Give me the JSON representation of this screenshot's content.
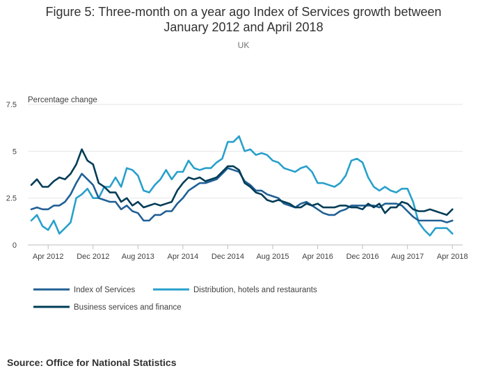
{
  "title_lines": [
    "Figure 5: Three-month on a year ago Index of Services growth between",
    "January 2012 and April 2018"
  ],
  "subtitle": "UK",
  "source": "Source: Office for National Statistics",
  "colors": {
    "Index of Services": "#206095",
    "Distribution, hotels and restaurants": "#27a0cc",
    "Business services and finance": "#003c57"
  },
  "chart_data": {
    "type": "line",
    "title": "Figure 5: Three-month on a year ago Index of Services growth between January 2012 and April 2018",
    "subtitle": "UK",
    "ylabel": "Percentage change",
    "xlabel": "",
    "ylim": [
      0,
      7.5
    ],
    "yticks": [
      "0",
      "2.5",
      "5",
      "7.5"
    ],
    "xticks": [
      "Apr 2012",
      "Dec 2012",
      "Aug 2013",
      "Apr 2014",
      "Dec 2014",
      "Aug 2015",
      "Apr 2016",
      "Dec 2016",
      "Aug 2017",
      "Apr 2018"
    ],
    "grid": true,
    "legend_position": "bottom",
    "x": [
      "Jan 2012",
      "Feb 2012",
      "Mar 2012",
      "Apr 2012",
      "May 2012",
      "Jun 2012",
      "Jul 2012",
      "Aug 2012",
      "Sep 2012",
      "Oct 2012",
      "Nov 2012",
      "Dec 2012",
      "Jan 2013",
      "Feb 2013",
      "Mar 2013",
      "Apr 2013",
      "May 2013",
      "Jun 2013",
      "Jul 2013",
      "Aug 2013",
      "Sep 2013",
      "Oct 2013",
      "Nov 2013",
      "Dec 2013",
      "Jan 2014",
      "Feb 2014",
      "Mar 2014",
      "Apr 2014",
      "May 2014",
      "Jun 2014",
      "Jul 2014",
      "Aug 2014",
      "Sep 2014",
      "Oct 2014",
      "Nov 2014",
      "Dec 2014",
      "Jan 2015",
      "Feb 2015",
      "Mar 2015",
      "Apr 2015",
      "May 2015",
      "Jun 2015",
      "Jul 2015",
      "Aug 2015",
      "Sep 2015",
      "Oct 2015",
      "Nov 2015",
      "Dec 2015",
      "Jan 2016",
      "Feb 2016",
      "Mar 2016",
      "Apr 2016",
      "May 2016",
      "Jun 2016",
      "Jul 2016",
      "Aug 2016",
      "Sep 2016",
      "Oct 2016",
      "Nov 2016",
      "Dec 2016",
      "Jan 2017",
      "Feb 2017",
      "Mar 2017",
      "Apr 2017",
      "May 2017",
      "Jun 2017",
      "Jul 2017",
      "Aug 2017",
      "Sep 2017",
      "Oct 2017",
      "Nov 2017",
      "Dec 2017",
      "Jan 2018",
      "Feb 2018",
      "Mar 2018",
      "Apr 2018"
    ],
    "series": [
      {
        "name": "Index of Services",
        "values": [
          1.9,
          2.0,
          1.9,
          1.9,
          2.1,
          2.1,
          2.3,
          2.7,
          3.3,
          3.8,
          3.5,
          3.2,
          2.5,
          2.4,
          2.3,
          2.3,
          1.9,
          2.1,
          1.8,
          1.7,
          1.3,
          1.3,
          1.6,
          1.6,
          1.8,
          1.8,
          2.2,
          2.5,
          2.9,
          3.1,
          3.3,
          3.3,
          3.4,
          3.5,
          3.8,
          4.1,
          4.0,
          3.9,
          3.4,
          3.2,
          2.9,
          2.9,
          2.7,
          2.6,
          2.5,
          2.2,
          2.1,
          2.0,
          2.2,
          2.3,
          2.1,
          1.9,
          1.7,
          1.6,
          1.6,
          1.8,
          1.9,
          2.1,
          2.1,
          2.1,
          2.1,
          2.1,
          2.0,
          2.2,
          2.2,
          2.2,
          2.1,
          1.8,
          1.5,
          1.3,
          1.3,
          1.3,
          1.3,
          1.3,
          1.2,
          1.3
        ]
      },
      {
        "name": "Distribution, hotels and restaurants",
        "values": [
          1.3,
          1.6,
          1.0,
          0.8,
          1.3,
          0.6,
          0.9,
          1.2,
          2.5,
          2.7,
          3.0,
          2.5,
          2.5,
          3.1,
          3.1,
          3.6,
          3.1,
          4.1,
          4.0,
          3.7,
          2.9,
          2.8,
          3.2,
          3.5,
          4.0,
          3.5,
          3.9,
          3.9,
          4.5,
          4.1,
          4.0,
          4.1,
          4.1,
          4.4,
          4.6,
          5.5,
          5.5,
          5.8,
          5.0,
          5.1,
          4.8,
          4.9,
          4.8,
          4.5,
          4.4,
          4.1,
          4.0,
          3.9,
          4.1,
          4.2,
          3.9,
          3.3,
          3.3,
          3.2,
          3.1,
          3.3,
          3.7,
          4.5,
          4.6,
          4.4,
          3.6,
          3.1,
          2.9,
          3.1,
          2.9,
          2.8,
          3.0,
          3.0,
          2.3,
          1.2,
          0.8,
          0.5,
          0.9,
          0.9,
          0.9,
          0.6
        ]
      },
      {
        "name": "Business services and finance",
        "values": [
          3.2,
          3.5,
          3.1,
          3.1,
          3.4,
          3.6,
          3.5,
          3.8,
          4.3,
          5.1,
          4.5,
          4.3,
          3.3,
          3.1,
          2.8,
          2.8,
          2.3,
          2.5,
          2.1,
          2.3,
          2.0,
          2.1,
          2.2,
          2.1,
          2.2,
          2.3,
          2.9,
          3.3,
          3.6,
          3.5,
          3.6,
          3.4,
          3.5,
          3.6,
          3.9,
          4.2,
          4.2,
          4.0,
          3.3,
          3.1,
          2.8,
          2.7,
          2.4,
          2.3,
          2.4,
          2.3,
          2.2,
          2.0,
          2.0,
          2.2,
          2.1,
          2.2,
          2.0,
          2.0,
          2.0,
          2.1,
          2.1,
          2.0,
          2.0,
          1.9,
          2.2,
          2.0,
          2.2,
          1.7,
          2.0,
          2.0,
          2.3,
          2.2,
          1.9,
          1.8,
          1.8,
          1.9,
          1.8,
          1.7,
          1.6,
          1.9
        ]
      }
    ]
  }
}
